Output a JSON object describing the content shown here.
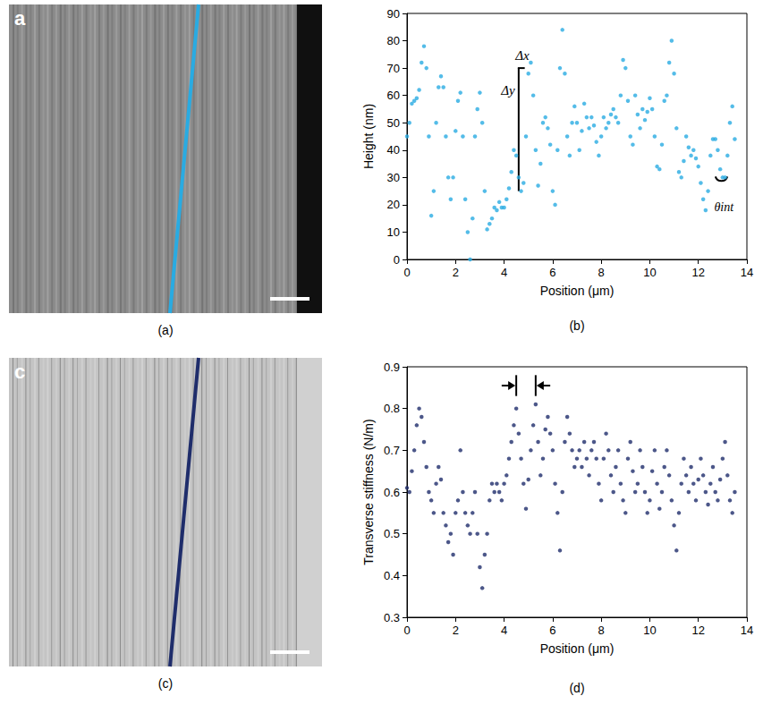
{
  "panels": [
    {
      "letter": "a",
      "caption": "(a)",
      "line_color": "#29abe2"
    },
    {
      "letter": "c",
      "caption": "(c)",
      "line_color": "#1f2d6b"
    }
  ],
  "chart_data": [
    {
      "type": "scatter",
      "caption": "(b)",
      "x_label": "Position (μm)",
      "y_label": "Height (nm)",
      "color": "#29abe2",
      "grid": false,
      "annotations": [
        "Δx",
        "Δy",
        "θint"
      ],
      "xlim": [
        0,
        14
      ],
      "xticks": [
        0,
        2,
        4,
        6,
        8,
        10,
        12,
        14
      ],
      "ylim": [
        0,
        90
      ],
      "yticks": [
        0,
        10,
        20,
        30,
        40,
        50,
        60,
        70,
        80,
        90
      ],
      "x": [
        0,
        0.1,
        0.2,
        0.3,
        0.4,
        0.5,
        0.6,
        0.7,
        0.8,
        0.9,
        1,
        1.1,
        1.2,
        1.3,
        1.4,
        1.5,
        1.6,
        1.7,
        1.8,
        1.9,
        2,
        2.1,
        2.2,
        2.3,
        2.4,
        2.5,
        2.6,
        2.7,
        2.8,
        2.9,
        3,
        3.1,
        3.2,
        3.3,
        3.4,
        3.5,
        3.6,
        3.7,
        3.8,
        3.9,
        4,
        4.1,
        4.2,
        4.3,
        4.4,
        4.5,
        4.6,
        4.7,
        4.8,
        4.9,
        5,
        5.1,
        5.2,
        5.3,
        5.4,
        5.5,
        5.6,
        5.7,
        5.8,
        5.9,
        6,
        6.1,
        6.2,
        6.3,
        6.4,
        6.5,
        6.6,
        6.7,
        6.8,
        6.9,
        7,
        7.1,
        7.2,
        7.3,
        7.4,
        7.5,
        7.6,
        7.7,
        7.8,
        7.9,
        8,
        8.1,
        8.2,
        8.3,
        8.4,
        8.5,
        8.6,
        8.7,
        8.8,
        8.9,
        9,
        9.1,
        9.2,
        9.3,
        9.4,
        9.5,
        9.6,
        9.7,
        9.8,
        9.9,
        10,
        10.1,
        10.2,
        10.3,
        10.4,
        10.5,
        10.6,
        10.7,
        10.8,
        10.9,
        11,
        11.1,
        11.2,
        11.3,
        11.4,
        11.5,
        11.6,
        11.7,
        11.8,
        11.9,
        12,
        12.1,
        12.2,
        12.3,
        12.4,
        12.5,
        12.6,
        12.7,
        12.8,
        12.9,
        13,
        13.1,
        13.2,
        13.3,
        13.4,
        13.5
      ],
      "values": [
        45,
        50,
        57,
        58,
        59,
        62,
        72,
        78,
        70,
        45,
        16,
        25,
        50,
        63,
        67,
        63,
        45,
        30,
        22,
        30,
        47,
        58,
        61,
        45,
        22,
        10,
        0,
        15,
        45,
        55,
        61,
        50,
        25,
        11,
        13,
        15,
        19,
        18,
        21,
        19,
        19,
        22,
        26,
        32,
        40,
        38,
        30,
        25,
        28,
        45,
        68,
        72,
        60,
        40,
        27,
        35,
        50,
        52,
        48,
        42,
        25,
        20,
        40,
        70,
        84,
        68,
        45,
        38,
        50,
        56,
        50,
        40,
        47,
        57,
        52,
        48,
        52,
        49,
        43,
        38,
        45,
        52,
        48,
        50,
        53,
        55,
        52,
        50,
        60,
        73,
        70,
        58,
        45,
        42,
        60,
        53,
        48,
        55,
        51,
        54,
        59,
        55,
        45,
        34,
        33,
        42,
        58,
        60,
        72,
        80,
        68,
        48,
        32,
        30,
        36,
        45,
        41,
        38,
        40,
        37,
        34,
        28,
        22,
        18,
        25,
        38,
        44,
        44,
        40,
        33,
        30,
        30,
        38,
        50,
        56,
        44
      ]
    },
    {
      "type": "scatter",
      "caption": "(d)",
      "x_label": "Position (μm)",
      "y_label": "Transverse stiffness (N/m)",
      "color": "#1f2d6b",
      "grid": false,
      "xlim": [
        0,
        14
      ],
      "xticks": [
        0,
        2,
        4,
        6,
        8,
        10,
        12,
        14
      ],
      "ylim": [
        0.3,
        0.9
      ],
      "yticks": [
        0.3,
        0.4,
        0.5,
        0.6,
        0.7,
        0.8,
        0.9
      ],
      "x": [
        0,
        0.1,
        0.2,
        0.3,
        0.4,
        0.5,
        0.6,
        0.7,
        0.8,
        0.9,
        1,
        1.1,
        1.2,
        1.3,
        1.4,
        1.5,
        1.6,
        1.7,
        1.8,
        1.9,
        2,
        2.1,
        2.2,
        2.3,
        2.4,
        2.5,
        2.6,
        2.7,
        2.8,
        2.9,
        3,
        3.1,
        3.2,
        3.3,
        3.4,
        3.5,
        3.6,
        3.7,
        3.8,
        3.9,
        4,
        4.1,
        4.2,
        4.3,
        4.4,
        4.5,
        4.6,
        4.7,
        4.8,
        4.9,
        5,
        5.1,
        5.2,
        5.3,
        5.4,
        5.5,
        5.6,
        5.7,
        5.8,
        5.9,
        6,
        6.1,
        6.2,
        6.3,
        6.4,
        6.5,
        6.6,
        6.7,
        6.8,
        6.9,
        7,
        7.1,
        7.2,
        7.3,
        7.4,
        7.5,
        7.6,
        7.7,
        7.8,
        7.9,
        8,
        8.1,
        8.2,
        8.3,
        8.4,
        8.5,
        8.6,
        8.7,
        8.8,
        8.9,
        9,
        9.1,
        9.2,
        9.3,
        9.4,
        9.5,
        9.6,
        9.7,
        9.8,
        9.9,
        10,
        10.1,
        10.2,
        10.3,
        10.4,
        10.5,
        10.6,
        10.7,
        10.8,
        10.9,
        11,
        11.1,
        11.2,
        11.3,
        11.4,
        11.5,
        11.6,
        11.7,
        11.8,
        11.9,
        12,
        12.1,
        12.2,
        12.3,
        12.4,
        12.5,
        12.6,
        12.7,
        12.8,
        12.9,
        13,
        13.1,
        13.2,
        13.3,
        13.4,
        13.5
      ],
      "values": [
        0.61,
        0.6,
        0.65,
        0.7,
        0.76,
        0.8,
        0.78,
        0.72,
        0.66,
        0.6,
        0.58,
        0.55,
        0.62,
        0.66,
        0.63,
        0.55,
        0.52,
        0.48,
        0.5,
        0.45,
        0.55,
        0.58,
        0.7,
        0.6,
        0.55,
        0.52,
        0.5,
        0.55,
        0.6,
        0.5,
        0.42,
        0.37,
        0.45,
        0.5,
        0.58,
        0.62,
        0.6,
        0.62,
        0.6,
        0.58,
        0.62,
        0.64,
        0.68,
        0.72,
        0.76,
        0.8,
        0.74,
        0.68,
        0.62,
        0.56,
        0.63,
        0.7,
        0.76,
        0.81,
        0.72,
        0.64,
        0.68,
        0.75,
        0.78,
        0.74,
        0.7,
        0.62,
        0.55,
        0.46,
        0.6,
        0.72,
        0.78,
        0.74,
        0.7,
        0.66,
        0.68,
        0.7,
        0.66,
        0.72,
        0.68,
        0.64,
        0.7,
        0.72,
        0.68,
        0.62,
        0.58,
        0.68,
        0.74,
        0.7,
        0.64,
        0.6,
        0.66,
        0.7,
        0.62,
        0.58,
        0.55,
        0.68,
        0.72,
        0.65,
        0.6,
        0.62,
        0.7,
        0.66,
        0.6,
        0.55,
        0.58,
        0.65,
        0.7,
        0.62,
        0.56,
        0.6,
        0.66,
        0.7,
        0.64,
        0.58,
        0.52,
        0.46,
        0.55,
        0.62,
        0.68,
        0.64,
        0.6,
        0.66,
        0.62,
        0.58,
        0.63,
        0.68,
        0.64,
        0.6,
        0.57,
        0.62,
        0.66,
        0.6,
        0.58,
        0.63,
        0.68,
        0.72,
        0.64,
        0.58,
        0.55,
        0.6
      ]
    }
  ]
}
